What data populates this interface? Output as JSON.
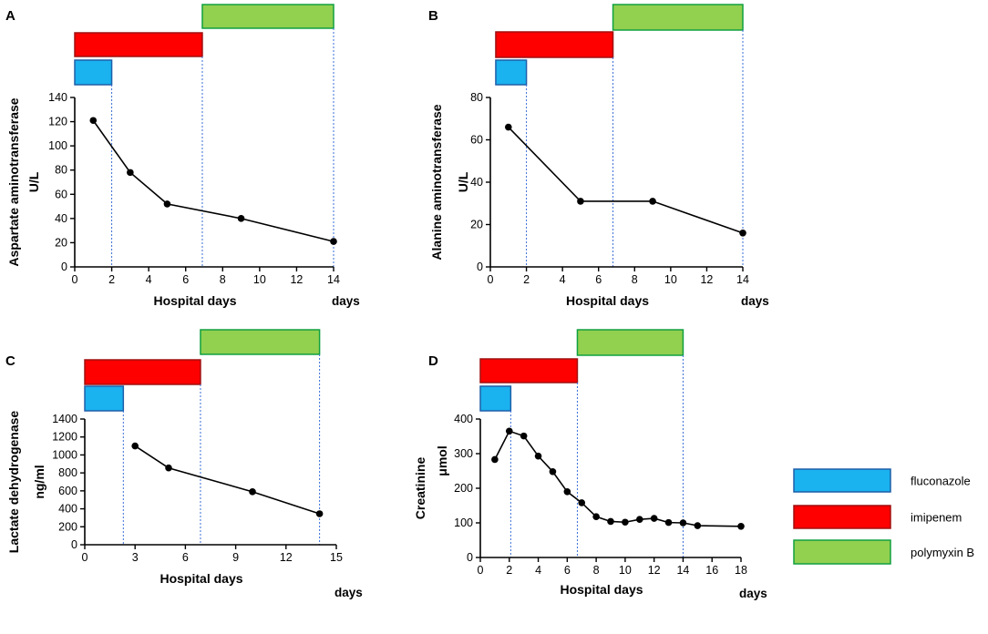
{
  "figure": {
    "legend": [
      {
        "name": "fluconazole",
        "color": "#1ab2ef",
        "border": "#1e5fa8"
      },
      {
        "name": "imipenem",
        "color": "#ff0000",
        "border": "#a01010"
      },
      {
        "name": "polymyxin B",
        "color": "#92d050",
        "border": "#10a040"
      }
    ],
    "days_label": "days"
  },
  "chart_data": [
    {
      "panel": "A",
      "type": "line",
      "title": "",
      "xlabel": "Hospital days",
      "ylabel_main": "Aspartate aminotransferase",
      "ylabel_unit": "U/L",
      "xlim": [
        0,
        14
      ],
      "ylim": [
        0,
        140
      ],
      "xticks": [
        0,
        2,
        4,
        6,
        8,
        10,
        12,
        14
      ],
      "yticks": [
        0,
        20,
        40,
        60,
        80,
        100,
        120,
        140
      ],
      "x": [
        1,
        3,
        5,
        9,
        14
      ],
      "y": [
        121,
        78,
        52,
        40,
        21
      ],
      "treatments": [
        {
          "name": "fluconazole",
          "start": 0,
          "end": 2
        },
        {
          "name": "imipenem",
          "start": 0,
          "end": 6.9
        },
        {
          "name": "polymyxin B",
          "start": 6.9,
          "end": 14
        }
      ]
    },
    {
      "panel": "B",
      "type": "line",
      "title": "",
      "xlabel": "Hospital days",
      "ylabel_main": "Alanine aminotransferase",
      "ylabel_unit": "U/L",
      "xlim": [
        0,
        14
      ],
      "ylim": [
        0,
        80
      ],
      "xticks": [
        0,
        2,
        4,
        6,
        8,
        10,
        12,
        14
      ],
      "yticks": [
        0,
        20,
        40,
        60,
        80
      ],
      "x": [
        1,
        5,
        9,
        14
      ],
      "y": [
        66,
        31,
        31,
        16
      ],
      "treatments": [
        {
          "name": "fluconazole",
          "start": 0.3,
          "end": 2
        },
        {
          "name": "imipenem",
          "start": 0.3,
          "end": 6.8
        },
        {
          "name": "polymyxin B",
          "start": 6.8,
          "end": 14
        }
      ]
    },
    {
      "panel": "C",
      "type": "line",
      "title": "",
      "xlabel": "Hospital days",
      "ylabel_main": "Lactate dehydrogenase",
      "ylabel_unit": "ng/ml",
      "xlim": [
        0,
        15
      ],
      "ylim": [
        0,
        1400
      ],
      "xticks": [
        0,
        3,
        6,
        9,
        12,
        15
      ],
      "yticks": [
        0,
        200,
        400,
        600,
        800,
        1000,
        1200,
        1400
      ],
      "x": [
        3,
        5,
        10,
        14
      ],
      "y": [
        1100,
        855,
        590,
        345
      ],
      "treatments": [
        {
          "name": "fluconazole",
          "start": 0,
          "end": 2.3
        },
        {
          "name": "imipenem",
          "start": 0,
          "end": 6.9
        },
        {
          "name": "polymyxin B",
          "start": 6.9,
          "end": 14
        }
      ]
    },
    {
      "panel": "D",
      "type": "line",
      "title": "",
      "xlabel": "Hospital days",
      "ylabel_main": "Creatinine",
      "ylabel_unit": "μmol",
      "xlim": [
        0,
        18
      ],
      "ylim": [
        0,
        400
      ],
      "xticks": [
        0,
        2,
        4,
        6,
        8,
        10,
        12,
        14,
        16,
        18
      ],
      "yticks": [
        0,
        100,
        200,
        300,
        400
      ],
      "x": [
        1,
        2,
        3,
        4,
        5,
        6,
        7,
        8,
        9,
        10,
        11,
        12,
        13,
        14,
        15,
        18
      ],
      "y": [
        283,
        365,
        351,
        293,
        248,
        190,
        158,
        118,
        104,
        102,
        110,
        113,
        101,
        100,
        92,
        90
      ],
      "treatments": [
        {
          "name": "fluconazole",
          "start": 0,
          "end": 2.1
        },
        {
          "name": "imipenem",
          "start": 0,
          "end": 6.7
        },
        {
          "name": "polymyxin B",
          "start": 6.7,
          "end": 14
        }
      ]
    }
  ]
}
